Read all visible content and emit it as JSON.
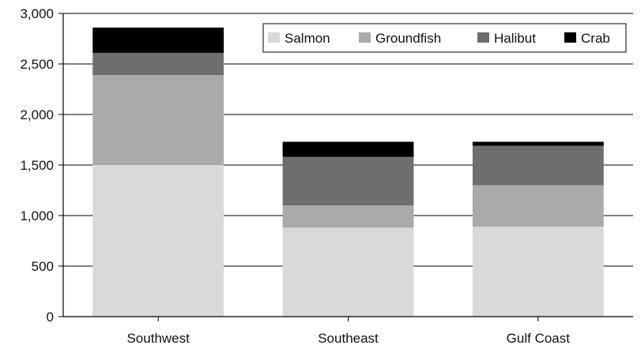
{
  "chart_data": {
    "type": "bar",
    "stacked": true,
    "categories": [
      "Southwest",
      "Southeast",
      "Gulf Coast"
    ],
    "series": [
      {
        "name": "Salmon",
        "color": "#d9d9d9",
        "values": [
          1500,
          880,
          890
        ]
      },
      {
        "name": "Groundfish",
        "color": "#aaaaaa",
        "values": [
          890,
          220,
          410
        ]
      },
      {
        "name": "Halibut",
        "color": "#6e6e6e",
        "values": [
          220,
          480,
          390
        ]
      },
      {
        "name": "Crab",
        "color": "#000000",
        "values": [
          250,
          150,
          40
        ]
      }
    ],
    "yticks": [
      "0",
      "500",
      "1,000",
      "1,500",
      "2,000",
      "2,500",
      "3,000"
    ],
    "ylim": [
      0,
      3000
    ],
    "grid": true,
    "legend_position": "top-right",
    "title": "",
    "xlabel": "",
    "ylabel": ""
  }
}
